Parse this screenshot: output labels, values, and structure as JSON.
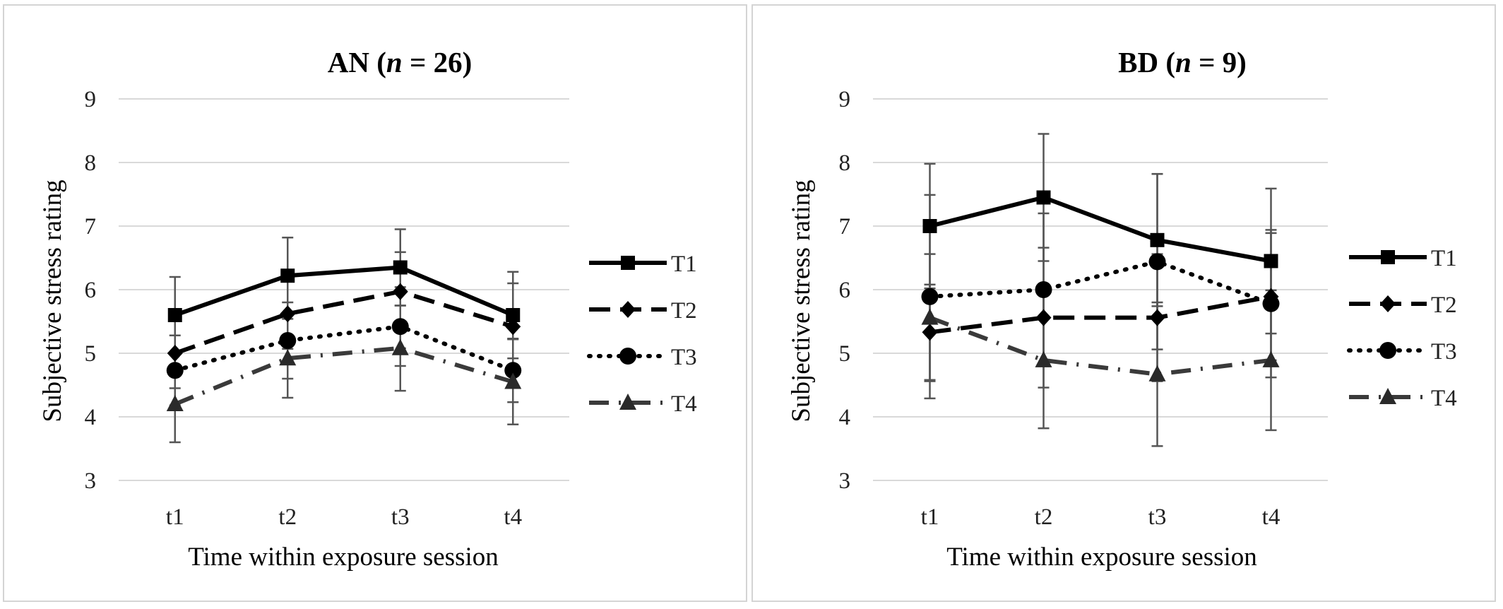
{
  "chart_data": [
    {
      "type": "line",
      "title_prefix": "AN (",
      "title_var": "n",
      "title_suffix": " = 26)",
      "xlabel": "Time within exposure session",
      "ylabel": "Subjective stress rating",
      "categories": [
        "t1",
        "t2",
        "t3",
        "t4"
      ],
      "ylim": [
        3,
        9
      ],
      "yticks": [
        "3",
        "4",
        "5",
        "6",
        "7",
        "8",
        "9"
      ],
      "grid": true,
      "legend_position": "right",
      "series": [
        {
          "name": "T1",
          "values": [
            5.6,
            6.22,
            6.35,
            5.6
          ],
          "errors": [
            0.6,
            0.6,
            0.6,
            0.68
          ],
          "line_style": "solid",
          "marker": "square"
        },
        {
          "name": "T2",
          "values": [
            5.0,
            5.62,
            5.97,
            5.42
          ],
          "errors": [
            0.55,
            0.55,
            0.62,
            0.68
          ],
          "line_style": "dashed",
          "marker": "diamond"
        },
        {
          "name": "T3",
          "values": [
            4.73,
            5.2,
            5.42,
            4.73
          ],
          "errors": [
            0.55,
            0.6,
            0.62,
            0.5
          ],
          "line_style": "dotted",
          "marker": "circle"
        },
        {
          "name": "T4",
          "values": [
            4.2,
            4.92,
            5.08,
            4.55
          ],
          "errors": [
            0.6,
            0.62,
            0.67,
            0.67
          ],
          "line_style": "dashdot",
          "marker": "triangle"
        }
      ]
    },
    {
      "type": "line",
      "title_prefix": "BD (",
      "title_var": "n",
      "title_suffix": " = 9)",
      "xlabel": "Time within exposure session",
      "ylabel": "Subjective stress rating",
      "categories": [
        "t1",
        "t2",
        "t3",
        "t4"
      ],
      "ylim": [
        3,
        9
      ],
      "yticks": [
        "3",
        "4",
        "5",
        "6",
        "7",
        "8",
        "9"
      ],
      "grid": true,
      "legend_position": "right",
      "series": [
        {
          "name": "T1",
          "values": [
            7.0,
            7.45,
            6.78,
            6.45
          ],
          "errors": [
            0.98,
            1.0,
            1.04,
            1.14
          ],
          "line_style": "solid",
          "marker": "square"
        },
        {
          "name": "T2",
          "values": [
            5.33,
            5.56,
            5.56,
            5.89
          ],
          "errors": [
            0.75,
            1.1,
            1.0,
            1.0
          ],
          "line_style": "dashed",
          "marker": "diamond"
        },
        {
          "name": "T3",
          "values": [
            5.89,
            6.0,
            6.44,
            5.78
          ],
          "errors": [
            1.6,
            1.2,
            1.38,
            1.16
          ],
          "line_style": "dotted",
          "marker": "circle"
        },
        {
          "name": "T4",
          "values": [
            5.56,
            4.89,
            4.67,
            4.89
          ],
          "errors": [
            1.0,
            1.07,
            1.13,
            1.1
          ],
          "line_style": "dashdot",
          "marker": "triangle"
        }
      ]
    }
  ]
}
